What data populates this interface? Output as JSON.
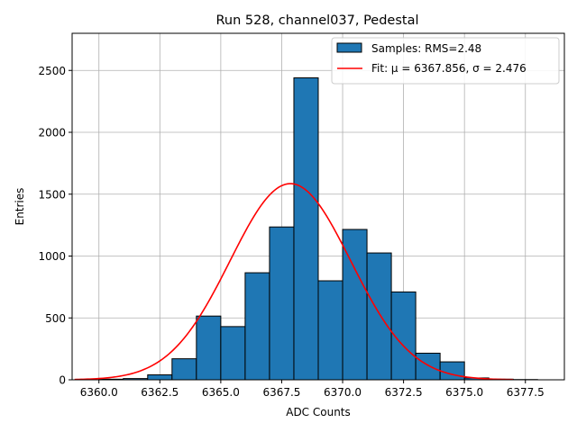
{
  "chart_data": {
    "type": "bar",
    "title": "Run 528, channel037, Pedestal",
    "xlabel": "ADC Counts",
    "ylabel": "Entries",
    "xlim": [
      6358.9,
      6379.1
    ],
    "ylim": [
      0,
      2800
    ],
    "xticks": [
      6360.0,
      6362.5,
      6365.0,
      6367.5,
      6370.0,
      6372.5,
      6375.0,
      6377.5
    ],
    "xtick_labels": [
      "6360.0",
      "6362.5",
      "6365.0",
      "6367.5",
      "6370.0",
      "6372.5",
      "6375.0",
      "6377.5"
    ],
    "yticks": [
      0,
      500,
      1000,
      1500,
      2000,
      2500
    ],
    "ytick_labels": [
      "0",
      "500",
      "1000",
      "1500",
      "2000",
      "2500"
    ],
    "grid": true,
    "legend_position": "top-right",
    "bin_edges": [
      6360,
      6361,
      6362,
      6363,
      6364,
      6365,
      6366,
      6367,
      6368,
      6369,
      6370,
      6371,
      6372,
      6373,
      6374,
      6375,
      6376,
      6377,
      6378,
      6379
    ],
    "counts": [
      5,
      10,
      40,
      170,
      515,
      430,
      865,
      1235,
      2440,
      800,
      1215,
      1025,
      710,
      215,
      145,
      15,
      5,
      2,
      0
    ],
    "fit": {
      "function": "gaussian",
      "mu": 6367.856,
      "sigma": 2.476,
      "amplitude": 1585,
      "x_range": [
        6359.0,
        6377.0
      ]
    },
    "series": [
      {
        "name": "Samples: RMS=2.48",
        "kind": "histogram",
        "color": "#1f77b4",
        "edgecolor": "#000000"
      },
      {
        "name": "Fit: μ = 6367.856, σ = 2.476",
        "kind": "line",
        "color": "#ff0000"
      }
    ]
  }
}
